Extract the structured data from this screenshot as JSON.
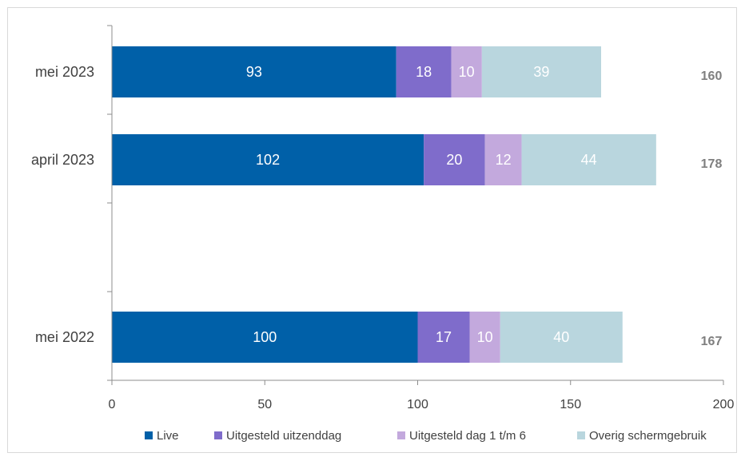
{
  "chart_data": {
    "type": "bar",
    "orientation": "horizontal",
    "stacked": true,
    "categories": [
      "mei 2023",
      "april 2023",
      "",
      "mei 2022"
    ],
    "series": [
      {
        "name": "Live",
        "color": "#0060a8",
        "values": [
          93,
          102,
          null,
          100
        ]
      },
      {
        "name": "Uitgesteld uitzenddag",
        "color": "#7f6ccb",
        "values": [
          18,
          20,
          null,
          17
        ]
      },
      {
        "name": "Uitgesteld dag 1 t/m 6",
        "color": "#c3a9dd",
        "values": [
          10,
          12,
          null,
          10
        ]
      },
      {
        "name": "Overig schermgebruik",
        "color": "#b9d6de",
        "values": [
          39,
          44,
          null,
          40
        ]
      }
    ],
    "totals": [
      "160",
      "178",
      "",
      "167"
    ],
    "xlim": [
      0,
      200
    ],
    "xticks": [
      "0",
      "50",
      "100",
      "150",
      "200"
    ],
    "grid": false,
    "legend": "bottom"
  }
}
